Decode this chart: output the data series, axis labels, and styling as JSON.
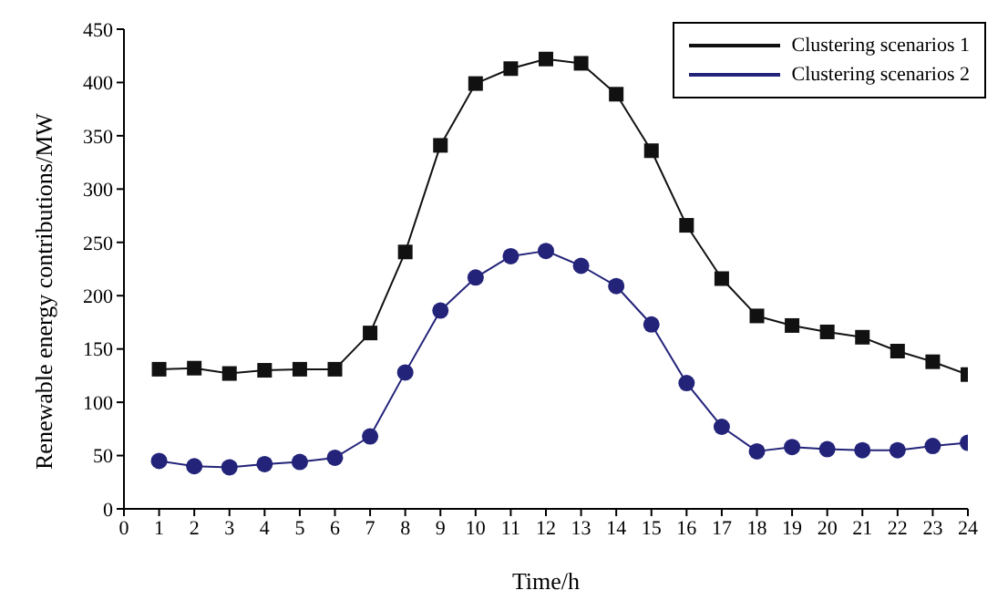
{
  "chart_data": {
    "type": "line",
    "xlabel": "Time/h",
    "ylabel": "Renewable energy contributions/MW",
    "x": [
      1,
      2,
      3,
      4,
      5,
      6,
      7,
      8,
      9,
      10,
      11,
      12,
      13,
      14,
      15,
      16,
      17,
      18,
      19,
      20,
      21,
      22,
      23,
      24
    ],
    "series": [
      {
        "name": "Clustering scenarios 1",
        "color": "#111111",
        "marker": "square",
        "values": [
          131,
          132,
          127,
          130,
          131,
          131,
          165,
          241,
          341,
          399,
          413,
          422,
          418,
          389,
          336,
          266,
          216,
          181,
          172,
          166,
          161,
          148,
          138,
          126
        ]
      },
      {
        "name": "Clustering scenarios 2",
        "color": "#23237a",
        "marker": "circle",
        "values": [
          45,
          40,
          39,
          42,
          44,
          48,
          68,
          128,
          186,
          217,
          237,
          242,
          228,
          209,
          173,
          118,
          77,
          54,
          58,
          56,
          55,
          55,
          59,
          62
        ]
      }
    ],
    "xlim": [
      0,
      24
    ],
    "xticks": [
      0,
      1,
      2,
      3,
      4,
      5,
      6,
      7,
      8,
      9,
      10,
      11,
      12,
      13,
      14,
      15,
      16,
      17,
      18,
      19,
      20,
      21,
      22,
      23,
      24
    ],
    "ylim": [
      0,
      450
    ],
    "yticks": [
      0,
      50,
      100,
      150,
      200,
      250,
      300,
      350,
      400,
      450
    ],
    "grid": false,
    "legend": "top right",
    "line_style": "solid"
  }
}
